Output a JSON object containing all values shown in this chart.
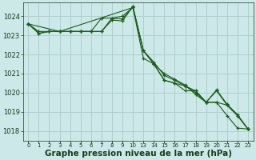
{
  "background_color": "#cce8e8",
  "grid_color": "#aacccc",
  "line_color": "#1a5c1a",
  "xlabel": "Graphe pression niveau de la mer (hPa)",
  "xlabel_fontsize": 7.5,
  "ylim": [
    1017.5,
    1024.7
  ],
  "yticks": [
    1018,
    1019,
    1020,
    1021,
    1022,
    1023,
    1024
  ],
  "ytick_fontsize": 6.0,
  "xtick_labels": [
    "0",
    "1",
    "2",
    "3",
    "4",
    "5",
    "6",
    "7",
    "8",
    "9",
    "10",
    "13",
    "14",
    "15",
    "16",
    "17",
    "18",
    "19",
    "20",
    "21",
    "22",
    "23"
  ],
  "xtick_positions": [
    0,
    1,
    2,
    3,
    4,
    5,
    6,
    7,
    8,
    9,
    10,
    11,
    12,
    13,
    14,
    15,
    16,
    17,
    18,
    19,
    20,
    21
  ],
  "xtick_fontsize": 5.0,
  "series": [
    {
      "x": [
        0,
        1,
        2,
        3,
        4,
        5,
        6,
        7,
        8,
        9,
        10,
        11,
        12,
        13,
        14,
        15,
        16,
        17,
        18,
        19,
        20,
        21
      ],
      "y": [
        1023.6,
        1023.1,
        1023.2,
        1023.2,
        1023.2,
        1023.2,
        1023.2,
        1023.9,
        1023.9,
        1024.0,
        1024.45,
        1022.2,
        1021.6,
        1020.9,
        1020.65,
        1020.35,
        1020.0,
        1019.5,
        1019.5,
        1018.8,
        1018.15,
        1018.1
      ],
      "marker": "+"
    },
    {
      "x": [
        0,
        1,
        2,
        3,
        4,
        5,
        6,
        7,
        8,
        9,
        10,
        11,
        12,
        13,
        14,
        15,
        16,
        17,
        18,
        19,
        20,
        21
      ],
      "y": [
        1023.6,
        1023.2,
        1023.2,
        1023.2,
        1023.2,
        1023.2,
        1023.2,
        1023.2,
        1023.9,
        1023.85,
        1024.5,
        1022.2,
        1021.5,
        1020.65,
        1020.5,
        1020.35,
        1020.1,
        1019.5,
        1019.5,
        1019.35,
        1018.8,
        1018.1
      ],
      "marker": "+"
    },
    {
      "x": [
        0,
        1,
        2,
        3,
        4,
        5,
        6,
        7,
        8,
        9,
        10,
        11,
        12,
        13,
        14,
        15,
        16,
        17,
        18,
        19,
        20,
        21
      ],
      "y": [
        1023.6,
        1023.1,
        1023.2,
        1023.2,
        1023.2,
        1023.2,
        1023.2,
        1023.2,
        1023.8,
        1023.75,
        1024.5,
        1022.2,
        1021.5,
        1020.65,
        1020.5,
        1020.1,
        1020.1,
        1019.5,
        1020.1,
        1019.35,
        1018.8,
        1018.1
      ],
      "marker": "+"
    },
    {
      "x": [
        0,
        3,
        10,
        11,
        12,
        13,
        14,
        15,
        16,
        17,
        18,
        19,
        20,
        21
      ],
      "y": [
        1023.6,
        1023.2,
        1024.45,
        1021.8,
        1021.5,
        1021.0,
        1020.7,
        1020.4,
        1019.9,
        1019.5,
        1020.15,
        1019.4,
        1018.85,
        1018.1
      ],
      "marker": "+"
    }
  ]
}
